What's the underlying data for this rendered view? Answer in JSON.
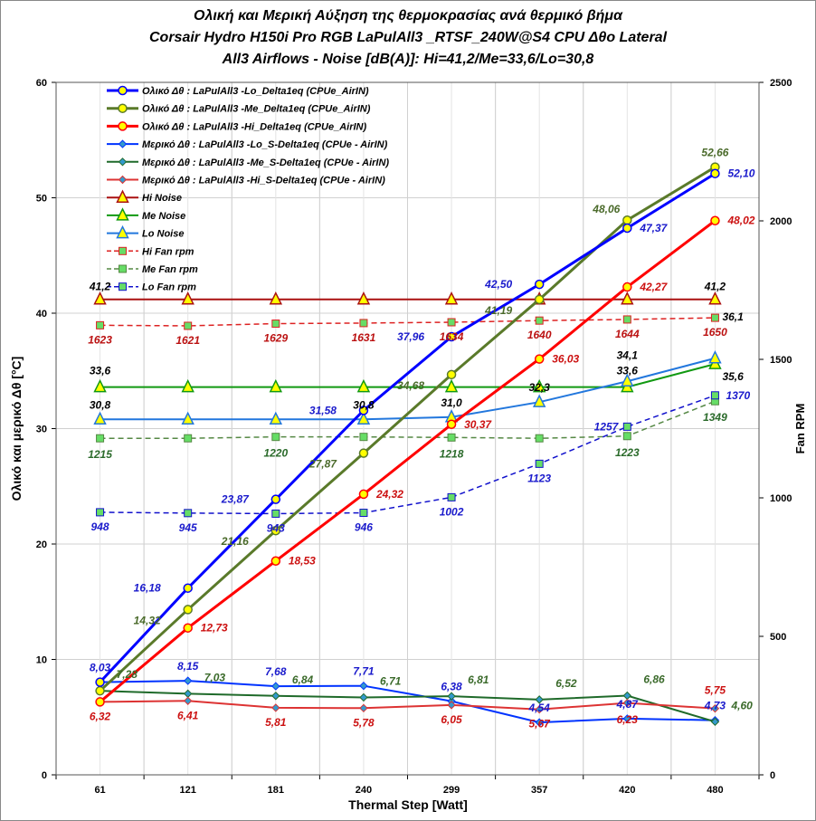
{
  "chart_data": {
    "type": "line",
    "title": [
      "Ολική και Μερική Αύξηση της θερμοκρασίας ανά θερμικό βήμα",
      "Corsair Hydro H150i Pro RGB  LaPulAll3 _RTSF_240W@S4  CPU  Δθο Lateral",
      "All3  Airflows  -  Noise [dB(A)]: Hi=41,2/Me=33,6/Lo=30,8"
    ],
    "xlabel": "Thermal Step [Watt]",
    "ylabel": "Ολικό  και  μερικό  Δθ  [°C]",
    "y2label": "Fan RPM",
    "categories": [
      "61",
      "121",
      "181",
      "240",
      "299",
      "357",
      "420",
      "480"
    ],
    "ylim": [
      0,
      60
    ],
    "yticks": [
      "0",
      "10",
      "20",
      "30",
      "40",
      "50",
      "60"
    ],
    "y2lim": [
      0,
      2500
    ],
    "y2ticks": [
      "0",
      "500",
      "1000",
      "1500",
      "2000",
      "2500"
    ],
    "grid": true,
    "legend": "top-left",
    "series": [
      {
        "name": "Ολικό Δθ : LaPulAll3 -Lo_Delta1eq (CPUe_AirIN)",
        "axis": "left",
        "color": "#0000ff",
        "marker": "circle",
        "dash": false,
        "width": 3,
        "values": [
          8.03,
          16.18,
          23.87,
          31.58,
          37.96,
          42.5,
          47.37,
          52.1
        ],
        "labels": [
          null,
          "16,18",
          "23,87",
          "31,58",
          "37,96",
          "42,50",
          "47,37",
          "52,10"
        ],
        "labelColor": "#1a1acc"
      },
      {
        "name": "Ολικό Δθ : LaPulAll3 -Me_Delta1eq  (CPUe_AirIN)",
        "axis": "left",
        "color": "#5a7a2a",
        "marker": "circle",
        "dash": false,
        "width": 3,
        "values": [
          7.28,
          14.32,
          21.16,
          27.87,
          34.68,
          41.19,
          48.06,
          52.66
        ],
        "labels": [
          null,
          "14,32",
          "21,16",
          "27,87",
          "34,68",
          "41,19",
          "48,06",
          "52,66"
        ],
        "labelColor": "#4a6a2a"
      },
      {
        "name": "Ολικό Δθ : LaPulAll3 -Hi_Delta1eq  (CPUe_AirIN)",
        "axis": "left",
        "color": "#ff0000",
        "marker": "circle",
        "dash": false,
        "width": 3,
        "values": [
          6.32,
          12.73,
          18.53,
          24.32,
          30.37,
          36.03,
          42.27,
          48.02
        ],
        "labels": [
          null,
          "12,73",
          "18,53",
          "24,32",
          "30,37",
          "36,03",
          "42,27",
          "48,02"
        ],
        "labelColor": "#cc1111"
      },
      {
        "name": "Μερικό Δθ : LaPulAll3 -Lo_S-Delta1eq (CPUe - AirIN)",
        "axis": "left",
        "color": "#0033ff",
        "marker": "diamond",
        "dash": false,
        "width": 2,
        "values": [
          8.03,
          8.15,
          7.68,
          7.71,
          6.38,
          4.54,
          4.87,
          4.73
        ],
        "labels": [
          "8,03",
          "8,15",
          "7,68",
          "7,71",
          "6,38",
          "4,54",
          "4,87",
          "4,73"
        ],
        "labelColor": "#1a1acc"
      },
      {
        "name": "Μερικό Δθ : LaPulAll3 -Me_S-Delta1eq  (CPUe - AirIN)",
        "axis": "left",
        "color": "#1f6a2a",
        "marker": "diamond",
        "dash": false,
        "width": 2,
        "values": [
          7.28,
          7.03,
          6.84,
          6.71,
          6.81,
          6.52,
          6.86,
          4.6
        ],
        "labels": [
          "7,28",
          "7,03",
          "6,84",
          "6,71",
          "6,81",
          "6,52",
          "6,86",
          "4,60"
        ],
        "labelColor": "#3a6a2a"
      },
      {
        "name": "Μερικό Δθ : LaPulAll3 -Hi_S-Delta1eq  (CPUe - AirIN)",
        "axis": "left",
        "color": "#dd3333",
        "marker": "diamond",
        "dash": false,
        "width": 2,
        "values": [
          6.32,
          6.41,
          5.81,
          5.78,
          6.05,
          5.67,
          6.23,
          5.75
        ],
        "labels": [
          "6,32",
          "6,41",
          "5,81",
          "5,78",
          "6,05",
          "5,67",
          "6,23",
          "5,75"
        ],
        "labelColor": "#cc1111"
      },
      {
        "name": "Hi Noise",
        "axis": "left",
        "color": "#aa1111",
        "marker": "triangle",
        "dash": false,
        "width": 2,
        "values": [
          41.2,
          41.2,
          41.2,
          41.2,
          41.2,
          41.2,
          41.2,
          41.2
        ],
        "labels": [
          "41,2",
          null,
          null,
          null,
          null,
          null,
          null,
          "41,2"
        ],
        "labelColor": "#000000"
      },
      {
        "name": "Me Noise",
        "axis": "left",
        "color": "#119911",
        "marker": "triangle",
        "dash": false,
        "width": 2,
        "values": [
          33.6,
          33.6,
          33.6,
          33.6,
          33.6,
          33.6,
          33.6,
          35.6
        ],
        "labels": [
          "33,6",
          null,
          null,
          null,
          null,
          null,
          "33,6",
          "35,6"
        ],
        "labelColor": "#000000"
      },
      {
        "name": "Lo Noise",
        "axis": "left",
        "color": "#2277dd",
        "marker": "triangle",
        "dash": false,
        "width": 2,
        "values": [
          30.8,
          30.8,
          30.8,
          30.8,
          31.0,
          32.3,
          34.1,
          36.1
        ],
        "labels": [
          "30,8",
          null,
          null,
          "30,8",
          "31,0",
          "32,3",
          "34,1",
          "36,1"
        ],
        "labelColor": "#000000"
      },
      {
        "name": "Hi Fan rpm",
        "axis": "right",
        "color": "#dd2222",
        "marker": "square",
        "dash": true,
        "width": 1.5,
        "values": [
          1623,
          1621,
          1629,
          1631,
          1634,
          1640,
          1644,
          1650
        ],
        "labels": [
          "1623",
          "1621",
          "1629",
          "1631",
          "1634",
          "1640",
          "1644",
          "1650"
        ],
        "labelColor": "#bb1111"
      },
      {
        "name": "Me Fan rpm",
        "axis": "right",
        "color": "#558844",
        "marker": "square",
        "dash": true,
        "width": 1.5,
        "values": [
          1215,
          1215,
          1220,
          1220,
          1218,
          1215,
          1223,
          1349
        ],
        "labels": [
          "1215",
          null,
          "1220",
          null,
          "1218",
          null,
          "1223",
          "1349"
        ],
        "labelColor": "#2a6a2a"
      },
      {
        "name": "Lo Fan rpm",
        "axis": "right",
        "color": "#1111cc",
        "marker": "square",
        "dash": true,
        "width": 1.5,
        "values": [
          948,
          945,
          943,
          946,
          1002,
          1123,
          1257,
          1370
        ],
        "labels": [
          "948",
          "945",
          "943",
          "946",
          "1002",
          "1123",
          "1257",
          "1370"
        ],
        "labelColor": "#1a1acc"
      }
    ]
  }
}
